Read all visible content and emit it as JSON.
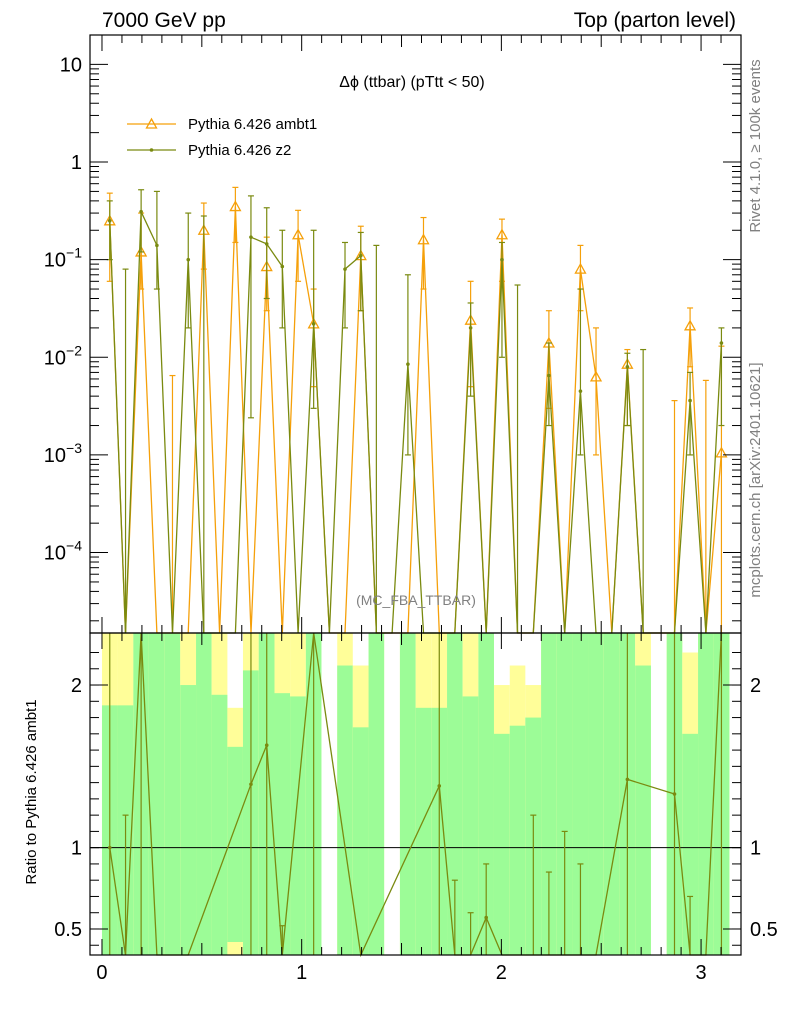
{
  "header": {
    "left_label": "7000 GeV pp",
    "right_label": "Top (parton level)"
  },
  "side_labels": {
    "rivet": "Rivet 4.1.0, ≥ 100k events",
    "mcplots": "mcplots.cern.ch [arXiv:2401.10621]"
  },
  "chart_data": [
    {
      "type": "line",
      "panel": "main",
      "title": "Δϕ (ttbar) (pTtt < 50)",
      "yscale": "log",
      "ylim": [
        1.5e-05,
        20
      ],
      "xlim": [
        -0.06,
        3.2
      ],
      "watermark": "(MC_FBA_TTBAR)",
      "y_ticks": [
        {
          "value": 10,
          "base": "10",
          "exp": ""
        },
        {
          "value": 1,
          "base": "1",
          "exp": ""
        },
        {
          "value": 0.1,
          "base": "10",
          "exp": "−1"
        },
        {
          "value": 0.01,
          "base": "10",
          "exp": "−2"
        },
        {
          "value": 0.001,
          "base": "10",
          "exp": "−3"
        },
        {
          "value": 0.0001,
          "base": "10",
          "exp": "−4"
        }
      ],
      "bin_width": 0.0785,
      "series": [
        {
          "name": "Pythia 6.426 ambt1",
          "color": "#f5a00a",
          "marker": "triangle",
          "points": [
            [
              0.039,
              0.25,
              0.06,
              0.48
            ],
            [
              0.118,
              0,
              0,
              0
            ],
            [
              0.196,
              0.12,
              0.05,
              0.3
            ],
            [
              0.275,
              0,
              0,
              0
            ],
            [
              0.353,
              0,
              0,
              0.0065
            ],
            [
              0.432,
              0,
              0,
              0
            ],
            [
              0.51,
              0.2,
              0.08,
              0.38
            ],
            [
              0.589,
              0,
              0,
              0
            ],
            [
              0.668,
              0.35,
              0.15,
              0.55
            ],
            [
              0.746,
              0,
              0,
              0
            ],
            [
              0.825,
              0.085,
              0.03,
              0.17
            ],
            [
              0.903,
              0,
              0,
              0
            ],
            [
              0.982,
              0.18,
              0.06,
              0.32
            ],
            [
              1.06,
              0.022,
              0.005,
              0.05
            ],
            [
              1.139,
              0,
              0,
              0
            ],
            [
              1.217,
              0,
              0,
              0
            ],
            [
              1.296,
              0.11,
              0.03,
              0.22
            ],
            [
              1.374,
              0,
              0,
              0
            ],
            [
              1.453,
              0,
              0,
              0
            ],
            [
              1.532,
              0,
              0,
              0
            ],
            [
              1.61,
              0.16,
              0.05,
              0.27
            ],
            [
              1.689,
              0,
              0,
              0
            ],
            [
              1.767,
              0,
              0,
              0
            ],
            [
              1.846,
              0.024,
              0.005,
              0.06
            ],
            [
              1.924,
              0,
              0,
              0
            ],
            [
              2.003,
              0.18,
              0.06,
              0.26
            ],
            [
              2.081,
              0,
              0,
              0
            ],
            [
              2.16,
              0,
              0,
              0
            ],
            [
              2.238,
              0.014,
              0.003,
              0.03
            ],
            [
              2.317,
              0,
              0,
              0
            ],
            [
              2.396,
              0.08,
              0.03,
              0.14
            ],
            [
              2.474,
              0.0063,
              0.001,
              0.02
            ],
            [
              2.553,
              0,
              0,
              0
            ],
            [
              2.631,
              0.0085,
              0.002,
              0.012
            ],
            [
              2.71,
              0,
              0,
              0
            ],
            [
              2.788,
              0,
              0,
              0
            ],
            [
              2.867,
              0,
              0,
              0.0036
            ],
            [
              2.945,
              0.021,
              0.008,
              0.032
            ],
            [
              3.024,
              0,
              0,
              0.0058
            ],
            [
              3.102,
              0.00105,
              0,
              0.013
            ]
          ]
        },
        {
          "name": "Pythia 6.426 z2",
          "color": "#7a8a10",
          "marker": "dot",
          "points": [
            [
              0.039,
              0.25,
              0.1,
              0.4
            ],
            [
              0.118,
              0,
              0,
              0.08
            ],
            [
              0.196,
              0.31,
              0.12,
              0.52
            ],
            [
              0.275,
              0.14,
              0.05,
              0.5
            ],
            [
              0.353,
              0,
              0,
              0
            ],
            [
              0.432,
              0.1,
              0.02,
              0.3
            ],
            [
              0.51,
              0,
              0,
              0.28
            ],
            [
              0.589,
              0,
              0,
              0
            ],
            [
              0.668,
              0,
              0,
              0
            ],
            [
              0.746,
              0.17,
              0.0024,
              0.45
            ],
            [
              0.825,
              0.145,
              0.04,
              0.34
            ],
            [
              0.903,
              0.085,
              0.02,
              0.2
            ],
            [
              0.982,
              0,
              0,
              0
            ],
            [
              1.06,
              0.022,
              0.003,
              0.2
            ],
            [
              1.139,
              0,
              0,
              0
            ],
            [
              1.217,
              0.08,
              0.02,
              0.15
            ],
            [
              1.296,
              0.11,
              0.03,
              0.19
            ],
            [
              1.374,
              0,
              0,
              0.14
            ],
            [
              1.453,
              0,
              0,
              0
            ],
            [
              1.532,
              0.0085,
              0.001,
              0.07
            ],
            [
              1.61,
              0,
              0,
              0
            ],
            [
              1.689,
              0,
              0,
              0
            ],
            [
              1.767,
              0,
              0,
              0
            ],
            [
              1.846,
              0.02,
              0.004,
              0.036
            ],
            [
              1.924,
              0,
              0,
              0
            ],
            [
              2.003,
              0.1,
              0.01,
              0.15
            ],
            [
              2.081,
              0,
              0,
              0.055
            ],
            [
              2.16,
              0,
              0,
              0
            ],
            [
              2.238,
              0.0065,
              0.002,
              0.014
            ],
            [
              2.317,
              0,
              0,
              0
            ],
            [
              2.396,
              0.0045,
              0.001,
              0.05
            ],
            [
              2.474,
              0,
              0,
              0
            ],
            [
              2.553,
              0,
              0,
              0
            ],
            [
              2.631,
              0.008,
              0.002,
              0.011
            ],
            [
              2.71,
              0,
              0,
              0.012
            ],
            [
              2.788,
              0,
              0,
              0
            ],
            [
              2.867,
              0,
              0,
              0
            ],
            [
              2.945,
              0.0036,
              0.001,
              0.007
            ],
            [
              3.024,
              0,
              0,
              0
            ],
            [
              3.102,
              0.014,
              0.002,
              0.02
            ]
          ]
        }
      ]
    },
    {
      "type": "line",
      "panel": "ratio",
      "ylabel": "Ratio to Pythia 6.426 ambt1",
      "ylim": [
        0.34,
        2.32
      ],
      "y_ticks": [
        2,
        1,
        0.5
      ],
      "x_ticks": [
        0,
        1,
        2,
        3
      ],
      "reference_line": 1,
      "bands": [
        {
          "x0": 0,
          "x1": 0.078,
          "g": [
            0,
            1.875
          ],
          "y": [
            0,
            2.32
          ]
        },
        {
          "x0": 0.078,
          "x1": 0.157,
          "g": [
            0,
            1.875
          ],
          "y": [
            0,
            2.32
          ]
        },
        {
          "x0": 0.157,
          "x1": 0.235,
          "g": [
            0,
            2.32
          ],
          "y": [
            0,
            2.32
          ]
        },
        {
          "x0": 0.235,
          "x1": 0.314,
          "g": [
            0,
            2.32
          ],
          "y": [
            0,
            2.32
          ]
        },
        {
          "x0": 0.314,
          "x1": 0.392,
          "g": [
            0,
            2.32
          ],
          "y": [
            0,
            2.32
          ]
        },
        {
          "x0": 0.392,
          "x1": 0.471,
          "g": [
            0,
            2.0
          ],
          "y": [
            0,
            2.32
          ]
        },
        {
          "x0": 0.471,
          "x1": 0.549,
          "g": [
            0,
            2.32
          ],
          "y": [
            0,
            2.32
          ]
        },
        {
          "x0": 0.549,
          "x1": 0.628,
          "g": [
            0,
            1.94
          ],
          "y": [
            0,
            2.32
          ]
        },
        {
          "x0": 0.628,
          "x1": 0.706,
          "g": [
            0.42,
            1.62
          ],
          "y": [
            0.34,
            1.86
          ]
        },
        {
          "x0": 0.706,
          "x1": 0.785,
          "g": [
            0,
            2.09
          ],
          "y": [
            0,
            2.32
          ]
        },
        {
          "x0": 0.785,
          "x1": 0.864,
          "g": [
            0,
            2.32
          ],
          "y": [
            0,
            2.32
          ]
        },
        {
          "x0": 0.864,
          "x1": 0.942,
          "g": [
            0,
            1.95
          ],
          "y": [
            0,
            2.32
          ]
        },
        {
          "x0": 0.942,
          "x1": 1.021,
          "g": [
            0,
            1.93
          ],
          "y": [
            0,
            2.32
          ]
        },
        {
          "x0": 1.021,
          "x1": 1.099,
          "g": [
            0,
            2.32
          ],
          "y": [
            0,
            2.32
          ]
        },
        {
          "x0": 1.178,
          "x1": 1.256,
          "g": [
            0,
            2.12
          ],
          "y": [
            0,
            2.32
          ]
        },
        {
          "x0": 1.256,
          "x1": 1.335,
          "g": [
            0,
            1.74
          ],
          "y": [
            0,
            2.12
          ]
        },
        {
          "x0": 1.335,
          "x1": 1.413,
          "g": [
            0,
            2.32
          ],
          "y": [
            0,
            2.32
          ]
        },
        {
          "x0": 1.492,
          "x1": 1.571,
          "g": [
            0,
            2.32
          ],
          "y": [
            0,
            2.32
          ]
        },
        {
          "x0": 1.571,
          "x1": 1.649,
          "g": [
            0,
            1.86
          ],
          "y": [
            0,
            2.32
          ]
        },
        {
          "x0": 1.649,
          "x1": 1.728,
          "g": [
            0,
            1.86
          ],
          "y": [
            0,
            2.32
          ]
        },
        {
          "x0": 1.728,
          "x1": 1.806,
          "g": [
            0,
            2.32
          ],
          "y": [
            0,
            2.32
          ]
        },
        {
          "x0": 1.806,
          "x1": 1.885,
          "g": [
            0,
            1.93
          ],
          "y": [
            0,
            2.32
          ]
        },
        {
          "x0": 1.885,
          "x1": 1.963,
          "g": [
            0,
            2.32
          ],
          "y": [
            0,
            2.32
          ]
        },
        {
          "x0": 1.963,
          "x1": 2.042,
          "g": [
            0,
            1.7
          ],
          "y": [
            0,
            2.0
          ]
        },
        {
          "x0": 2.042,
          "x1": 2.12,
          "g": [
            0,
            1.75
          ],
          "y": [
            0,
            2.12
          ]
        },
        {
          "x0": 2.12,
          "x1": 2.199,
          "g": [
            0,
            1.8
          ],
          "y": [
            0,
            2.0
          ]
        },
        {
          "x0": 2.199,
          "x1": 2.277,
          "g": [
            0,
            2.32
          ],
          "y": [
            0,
            2.32
          ]
        },
        {
          "x0": 2.277,
          "x1": 2.356,
          "g": [
            0,
            2.32
          ],
          "y": [
            0,
            2.32
          ]
        },
        {
          "x0": 2.356,
          "x1": 2.434,
          "g": [
            0,
            2.32
          ],
          "y": [
            0,
            2.32
          ]
        },
        {
          "x0": 2.434,
          "x1": 2.513,
          "g": [
            0,
            2.32
          ],
          "y": [
            0,
            2.32
          ]
        },
        {
          "x0": 2.513,
          "x1": 2.591,
          "g": [
            0,
            2.32
          ],
          "y": [
            0,
            2.32
          ]
        },
        {
          "x0": 2.591,
          "x1": 2.67,
          "g": [
            0,
            2.32
          ],
          "y": [
            0,
            2.32
          ]
        },
        {
          "x0": 2.67,
          "x1": 2.749,
          "g": [
            0,
            2.12
          ],
          "y": [
            0,
            2.32
          ]
        },
        {
          "x0": 2.828,
          "x1": 2.906,
          "g": [
            0,
            2.32
          ],
          "y": [
            0,
            2.32
          ]
        },
        {
          "x0": 2.906,
          "x1": 2.985,
          "g": [
            0,
            1.7
          ],
          "y": [
            0,
            2.2
          ]
        },
        {
          "x0": 2.985,
          "x1": 3.063,
          "g": [
            0,
            2.32
          ],
          "y": [
            0,
            2.32
          ]
        },
        {
          "x0": 3.063,
          "x1": 3.142,
          "g": [
            0,
            2.32
          ],
          "y": [
            0,
            2.32
          ]
        }
      ],
      "series": [
        {
          "name": "Pythia 6.426 z2",
          "color": "#7a8a10",
          "points": [
            [
              0.039,
              1.0,
              0.3,
              2.32
            ],
            [
              0.118,
              0.3,
              0.3,
              1.2
            ],
            [
              0.196,
              2.32,
              0.3,
              2.32
            ],
            [
              0.275,
              0.3,
              0.3,
              0.3
            ],
            [
              0.432,
              0.3,
              0.3,
              0.3
            ],
            [
              0.746,
              1.39,
              0.3,
              2.32
            ],
            [
              0.825,
              1.63,
              0.3,
              2.32
            ],
            [
              0.903,
              0.3,
              0.3,
              0.52
            ],
            [
              1.06,
              2.32,
              0.3,
              2.32
            ],
            [
              1.296,
              0.3,
              0.3,
              0.3
            ],
            [
              1.689,
              1.38,
              0.3,
              2.32
            ],
            [
              1.767,
              0.3,
              0.3,
              0.8
            ],
            [
              1.846,
              0.3,
              0.3,
              0.6
            ],
            [
              1.924,
              0.57,
              0.3,
              0.9
            ],
            [
              2.003,
              0.3,
              0.3,
              0.3
            ],
            [
              2.16,
              0.3,
              0.3,
              1.2
            ],
            [
              2.238,
              0.3,
              0.3,
              0.85
            ],
            [
              2.317,
              0.3,
              0.3,
              1.1
            ],
            [
              2.396,
              0.3,
              0.3,
              0.9
            ],
            [
              2.474,
              0.3,
              0.3,
              0.3
            ],
            [
              2.631,
              1.42,
              0.3,
              2.32
            ],
            [
              2.867,
              1.33,
              0.3,
              2.32
            ],
            [
              2.945,
              0.3,
              0.3,
              0.7
            ],
            [
              3.024,
              0.3,
              0.3,
              0.3
            ],
            [
              3.102,
              2.32,
              0.3,
              2.32
            ]
          ]
        }
      ]
    }
  ]
}
